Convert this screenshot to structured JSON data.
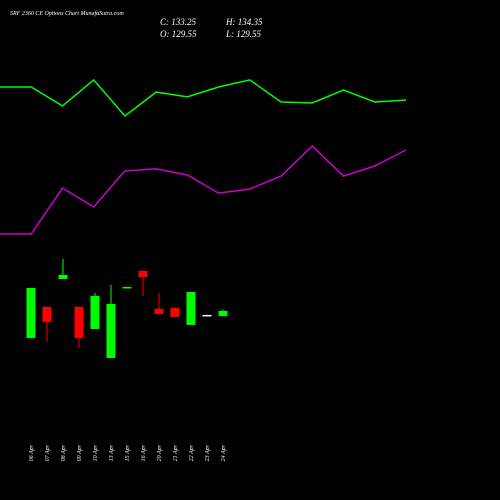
{
  "chart_data": [
    {
      "type": "line",
      "ylim": [
        0,
        100
      ],
      "series": [
        {
          "color": "#00ff00",
          "values": [
            77.6,
            77.6,
            68.6,
            81,
            63.8,
            75.2,
            72.9,
            77.6,
            81,
            70.5,
            70,
            76.2,
            70.5,
            71.4
          ]
        },
        {
          "color": "#cc00cc",
          "values": [
            7.6,
            7.6,
            29.5,
            20.5,
            37.6,
            38.6,
            35.7,
            27.1,
            29,
            35.2,
            49.5,
            35.2,
            40,
            47.6
          ]
        }
      ]
    },
    {
      "type": "candlestick",
      "title": "SRF 2360 CE Options Chart MunafaSutra.com",
      "header": [
        "C: 133.25",
        "H: 134.35",
        "O: 129.55",
        "L: 129.55"
      ],
      "categories": [
        "06 Apr",
        "07 Apr",
        "08 Apr",
        "09 Apr",
        "10 Apr",
        "13 Apr",
        "15 Apr",
        "16 Apr",
        "20 Apr",
        "21 Apr",
        "22 Apr",
        "23 Apr",
        "24 Apr"
      ],
      "open": [
        113.25,
        136.2,
        156.9,
        136.2,
        119.9,
        98.4,
        150.3,
        162.9,
        134.7,
        135.5,
        122.9,
        130.3,
        129.55
      ],
      "high": [
        150.3,
        136.2,
        171.8,
        136.2,
        146.6,
        152.5,
        151.0,
        162.9,
        146.6,
        135.5,
        147.3,
        130.3,
        134.35
      ],
      "low": [
        113.25,
        110.3,
        156.9,
        105.8,
        119.9,
        98.4,
        150.3,
        144.4,
        131.0,
        128.8,
        122.9,
        130.3,
        129.55
      ],
      "close": [
        150.3,
        125.1,
        159.9,
        113.25,
        144.4,
        138.4,
        151.0,
        158.4,
        131.0,
        128.8,
        147.3,
        130.3,
        133.25
      ],
      "up_color": "#00ff00",
      "down_color": "#ff0000",
      "flat_color": "#ffffff",
      "ylim": [
        82.1,
        185.8
      ]
    }
  ]
}
